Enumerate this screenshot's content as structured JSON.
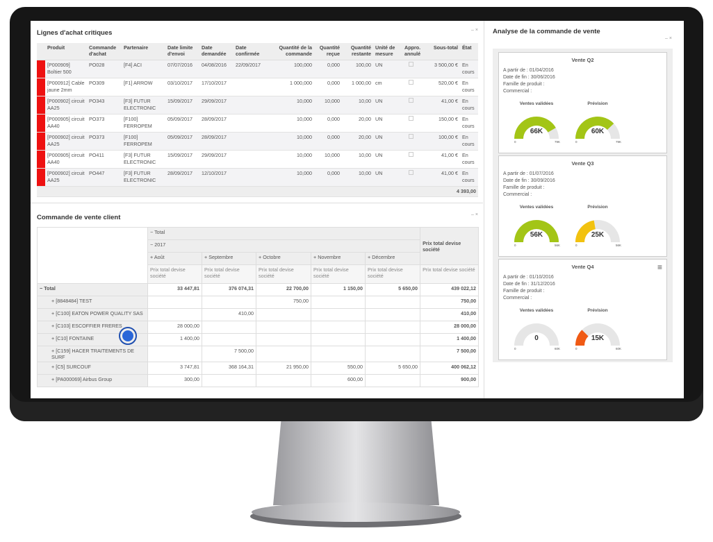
{
  "purchase_lines": {
    "title": "Lignes d'achat critiques",
    "columns": [
      "Produit",
      "Commande d'achat",
      "Partenaire",
      "Date limite d'envoi",
      "Date demandée",
      "Date confirmée",
      "Quantité de la commande",
      "Quantité reçue",
      "Quantité restante",
      "Unité de mesure",
      "Appro. annulé",
      "Sous-total",
      "État"
    ],
    "rows": [
      [
        "[P000909] Boîtier 500",
        "PO028",
        "[F4] ACI",
        "07/07/2016",
        "04/08/2016",
        "22/09/2017",
        "100,000",
        "0,000",
        "100,00",
        "UN",
        null,
        "3 500,00 €",
        "En cours"
      ],
      [
        "[P000912] Cable jaune 2mm",
        "PO309",
        "[F1] ARROW",
        "03/10/2017",
        "17/10/2017",
        null,
        "1 000,000",
        "0,000",
        "1 000,00",
        "cm",
        null,
        "520,00 €",
        "En cours"
      ],
      [
        "[P000902] circuit AA25",
        "PO343",
        "[F3] FUTUR ELECTRONIC",
        "15/09/2017",
        "29/09/2017",
        null,
        "10,000",
        "10,000",
        "10,00",
        "UN",
        null,
        "41,00 €",
        "En cours"
      ],
      [
        "[P000905] circuit AA40",
        "PO373",
        "[F100] FERROPEM",
        "05/09/2017",
        "28/09/2017",
        null,
        "10,000",
        "0,000",
        "20,00",
        "UN",
        null,
        "150,00 €",
        "En cours"
      ],
      [
        "[P000902] circuit AA25",
        "PO373",
        "[F100] FERROPEM",
        "05/09/2017",
        "28/09/2017",
        null,
        "10,000",
        "0,000",
        "20,00",
        "UN",
        null,
        "100,00 €",
        "En cours"
      ],
      [
        "[P000905] circuit AA40",
        "PO411",
        "[F3] FUTUR ELECTRONIC",
        "15/09/2017",
        "29/09/2017",
        null,
        "10,000",
        "10,000",
        "10,00",
        "UN",
        null,
        "41,00 €",
        "En cours"
      ],
      [
        "[P000902] circuit AA25",
        "PO447",
        "[F3] FUTUR ELECTRONIC",
        "28/09/2017",
        "12/10/2017",
        null,
        "10,000",
        "0,000",
        "10,00",
        "UN",
        null,
        "41,00 €",
        "En cours"
      ]
    ],
    "total": "4 393,00"
  },
  "sales_pivot": {
    "title": "Commande de vente client",
    "header_total": "Total",
    "year": "2017",
    "months": [
      "Août",
      "Septembre",
      "Octobre",
      "Novembre",
      "Décembre"
    ],
    "measure": "Prix total devise société",
    "rows": [
      {
        "label": "Total",
        "values": [
          "33 447,81",
          "376 074,31",
          "22 700,00",
          "1 150,00",
          "5 650,00",
          "439 022,12"
        ]
      },
      {
        "label": "[8848484] TEST",
        "values": [
          null,
          null,
          "750,00",
          null,
          null,
          "750,00"
        ]
      },
      {
        "label": "[C100] EATON POWER QUALITY SAS",
        "values": [
          null,
          "410,00",
          null,
          null,
          null,
          "410,00"
        ]
      },
      {
        "label": "[C103] ESCOFFIER FRERES",
        "values": [
          "28 000,00",
          null,
          null,
          null,
          null,
          "28 000,00"
        ]
      },
      {
        "label": "[C10] FONTAINE",
        "values": [
          "1 400,00",
          null,
          null,
          null,
          null,
          "1 400,00"
        ]
      },
      {
        "label": "[C159] HACER TRAITEMENTS DE SURF",
        "values": [
          null,
          "7 500,00",
          null,
          null,
          null,
          "7 500,00"
        ]
      },
      {
        "label": "[C5] SURCOUF",
        "values": [
          "3 747,81",
          "368 164,31",
          "21 950,00",
          "550,00",
          "5 650,00",
          "400 062,12"
        ]
      },
      {
        "label": "[PA000069] Airbus Group",
        "values": [
          "300,00",
          null,
          null,
          "600,00",
          null,
          "900,00"
        ]
      }
    ]
  },
  "sales_analysis": {
    "title": "Analyse de la commande de vente",
    "cards": [
      {
        "title": "Vente Q2",
        "lines": [
          "A partir de : 01/04/2016",
          "Date de fin : 30/06/2016",
          "Famille de produit :",
          "Commercial :"
        ],
        "gauges": [
          {
            "label": "Ventes validées",
            "value": "66K",
            "min": "0",
            "max": "79K",
            "color": "#a3c516"
          },
          {
            "label": "Prévision",
            "value": "60K",
            "min": "0",
            "max": "79K",
            "color": "#a3c516"
          }
        ]
      },
      {
        "title": "Vente Q3",
        "lines": [
          "A partir de : 01/07/2016",
          "Date de fin : 30/09/2016",
          "Famille de produit :",
          "Commercial :"
        ],
        "gauges": [
          {
            "label": "Ventes validées",
            "value": "56K",
            "min": "0",
            "max": "56K",
            "color": "#a3c516"
          },
          {
            "label": "Prévision",
            "value": "25K",
            "min": "0",
            "max": "56K",
            "color": "#f2c20f"
          }
        ]
      },
      {
        "title": "Vente Q4",
        "lines": [
          "A partir de : 01/10/2016",
          "Date de fin : 31/12/2016",
          "Famille de produit :",
          "Commercial :"
        ],
        "gauges": [
          {
            "label": "Ventes validées",
            "value": "0",
            "min": "0",
            "max": "60K",
            "color": "#a3c516"
          },
          {
            "label": "Prévision",
            "value": "15K",
            "min": "0",
            "max": "60K",
            "color": "#f05a14"
          }
        ]
      }
    ]
  }
}
